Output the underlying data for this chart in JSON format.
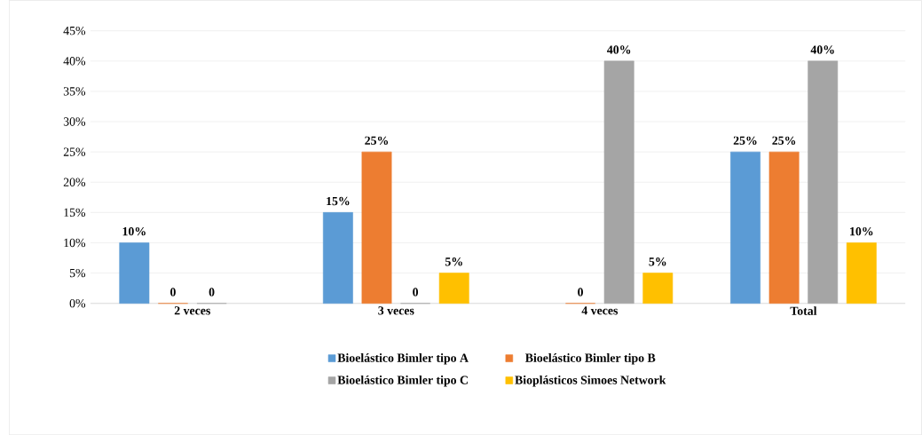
{
  "chart_data": {
    "type": "bar",
    "categories": [
      "2 veces",
      "3 veces",
      "4 veces",
      "Total"
    ],
    "series": [
      {
        "name": "Bioelástico Bimler tipo A",
        "color": "#5b9bd5",
        "values": [
          10,
          15,
          null,
          25
        ],
        "value_labels": [
          "10%",
          "15%",
          null,
          "25%"
        ]
      },
      {
        "name": "Bioelástico Bimler tipo B",
        "color": "#ed7d31",
        "values": [
          0,
          25,
          0,
          25
        ],
        "value_labels": [
          "0",
          "25%",
          "0",
          "25%"
        ]
      },
      {
        "name": "Bioelástico Bimler tipo C",
        "color": "#a5a5a5",
        "values": [
          0,
          0,
          40,
          40
        ],
        "value_labels": [
          "0",
          "0",
          "40%",
          "40%"
        ]
      },
      {
        "name": "Bioplásticos Simoes Network",
        "color": "#ffc000",
        "values": [
          null,
          5,
          5,
          10
        ],
        "value_labels": [
          null,
          "5%",
          "5%",
          "10%"
        ]
      }
    ],
    "ylim": [
      0,
      45
    ],
    "yticks": [
      {
        "value": 0,
        "label": "0%"
      },
      {
        "value": 5,
        "label": "5%"
      },
      {
        "value": 10,
        "label": "10%"
      },
      {
        "value": 15,
        "label": "15%"
      },
      {
        "value": 20,
        "label": "20%"
      },
      {
        "value": 25,
        "label": "25%"
      },
      {
        "value": 30,
        "label": "30%"
      },
      {
        "value": 35,
        "label": "35%"
      },
      {
        "value": 40,
        "label": "40%"
      },
      {
        "value": 45,
        "label": "45%"
      }
    ],
    "grid": "y",
    "legend": "bottom"
  }
}
